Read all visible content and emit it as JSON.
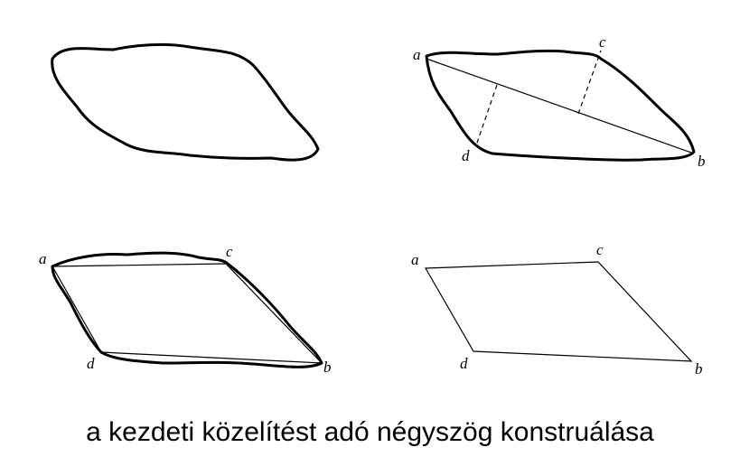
{
  "caption": "a kezdeti közelítést adó négyszög konstruálása",
  "panels": {
    "top_right": {
      "labels": {
        "a": "a",
        "b": "b",
        "c": "c",
        "d": "d"
      }
    },
    "bottom_left": {
      "labels": {
        "a": "a",
        "b": "b",
        "c": "c",
        "d": "d"
      }
    },
    "bottom_right": {
      "labels": {
        "a": "a",
        "b": "b",
        "c": "c",
        "d": "d"
      }
    }
  },
  "colors": {
    "stroke": "#000000",
    "background": "#ffffff"
  }
}
